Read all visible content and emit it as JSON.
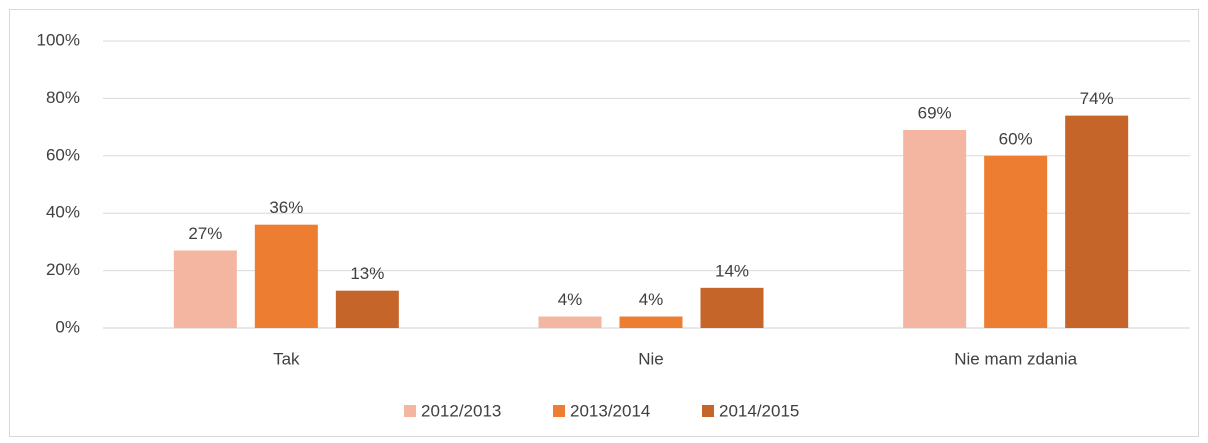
{
  "chart_data": {
    "type": "bar",
    "categories": [
      "Tak",
      "Nie",
      "Nie mam zdania"
    ],
    "series": [
      {
        "name": "2012/2013",
        "color": "#f4b6a1",
        "values": [
          27,
          4,
          69
        ],
        "value_labels": [
          "27%",
          "4%",
          "69%"
        ]
      },
      {
        "name": "2013/2014",
        "color": "#ed7d31",
        "values": [
          36,
          4,
          60
        ],
        "value_labels": [
          "36%",
          "4%",
          "60%"
        ]
      },
      {
        "name": "2014/2015",
        "color": "#c5652a",
        "values": [
          13,
          14,
          74
        ],
        "value_labels": [
          "13%",
          "14%",
          "74%"
        ]
      }
    ],
    "ylim": [
      0,
      100
    ],
    "yticks": [
      {
        "value": 0,
        "label": "0%"
      },
      {
        "value": 20,
        "label": "20%"
      },
      {
        "value": 40,
        "label": "40%"
      },
      {
        "value": 60,
        "label": "60%"
      },
      {
        "value": 80,
        "label": "80%"
      },
      {
        "value": 100,
        "label": "100%"
      }
    ],
    "grid": true,
    "legend": "bottom"
  }
}
